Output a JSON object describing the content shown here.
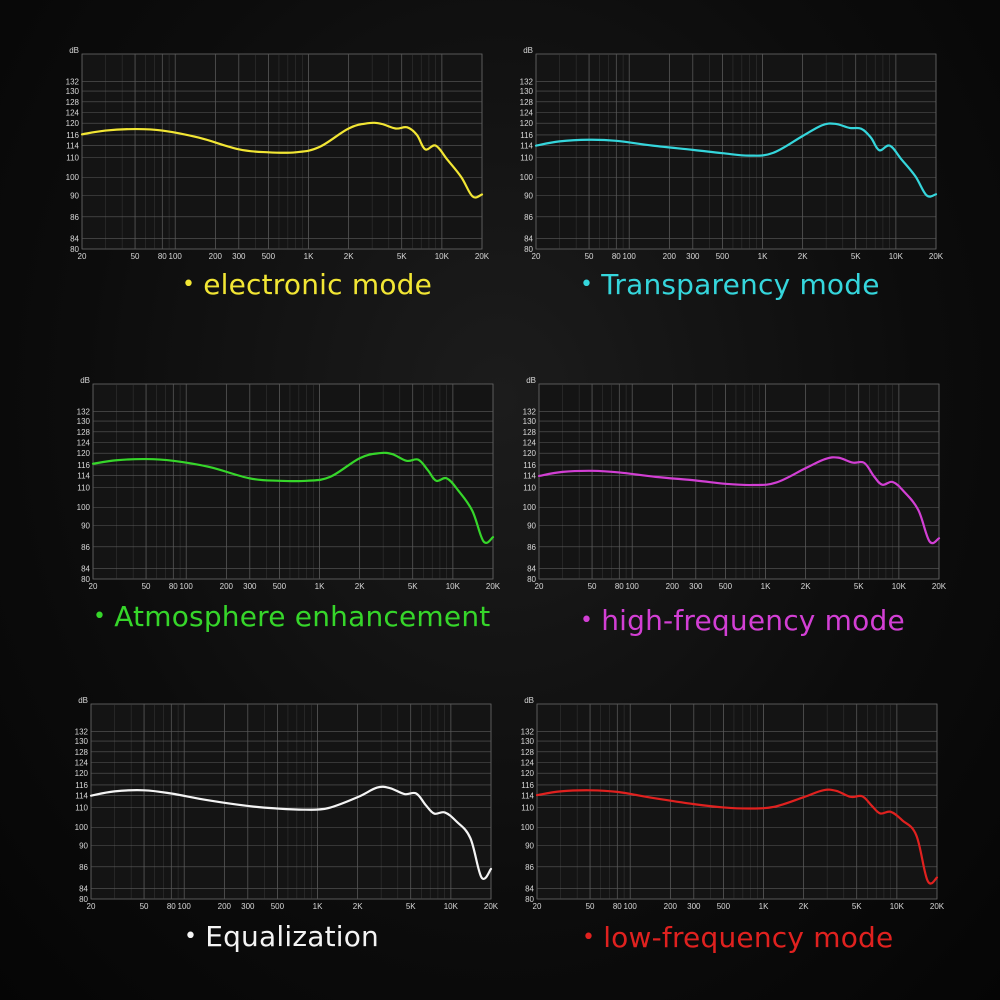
{
  "chart_data": [
    {
      "type": "line",
      "name": "electronic mode",
      "color": "#f2e634",
      "ylabel": "dB",
      "x_scale": "log",
      "xlim": [
        20,
        20000
      ],
      "x_ticks": [
        20,
        50,
        80,
        100,
        200,
        300,
        500,
        1000,
        2000,
        5000,
        10000,
        20000
      ],
      "x_tick_labels": [
        "20",
        "50",
        "80",
        "100",
        "200",
        "300",
        "500",
        "1K",
        "2K",
        "5K",
        "10K",
        "20K"
      ],
      "y_tick_labels": [
        "132",
        "130",
        "128",
        "124",
        "120",
        "116",
        "114",
        "110",
        "100",
        "90",
        "86",
        "84",
        "80"
      ],
      "grid": true,
      "series": [
        {
          "x": [
            20,
            30,
            50,
            80,
            150,
            300,
            500,
            800,
            1200,
            2000,
            2800,
            3500,
            4500,
            5500,
            6500,
            7500,
            9000,
            11000,
            14000,
            17000,
            20000
          ],
          "y": [
            116.2,
            117.5,
            118.0,
            117.5,
            115.5,
            112.8,
            111.8,
            111.8,
            113.5,
            118.2,
            120.0,
            119.8,
            118.2,
            118.6,
            116.0,
            112.8,
            114.0,
            109.0,
            100.0,
            89.8,
            90.5
          ]
        }
      ]
    },
    {
      "type": "line",
      "name": "Transparency mode",
      "color": "#35d6dc",
      "ylabel": "dB",
      "x_scale": "log",
      "xlim": [
        20,
        20000
      ],
      "x_ticks": [
        20,
        50,
        80,
        100,
        200,
        300,
        500,
        1000,
        2000,
        5000,
        10000,
        20000
      ],
      "x_tick_labels": [
        "20",
        "50",
        "80",
        "100",
        "200",
        "300",
        "500",
        "1K",
        "2K",
        "5K",
        "10K",
        "20K"
      ],
      "y_tick_labels": [
        "132",
        "130",
        "128",
        "124",
        "120",
        "116",
        "114",
        "110",
        "100",
        "90",
        "86",
        "84",
        "80"
      ],
      "grid": true,
      "series": [
        {
          "x": [
            20,
            30,
            50,
            80,
            150,
            300,
            500,
            800,
            1200,
            2000,
            2800,
            3500,
            4500,
            5500,
            6500,
            7500,
            9000,
            11000,
            14000,
            17000,
            20000
          ],
          "y": [
            114.0,
            114.8,
            115.1,
            114.9,
            114.0,
            112.6,
            111.5,
            110.7,
            111.6,
            115.8,
            119.3,
            119.8,
            118.4,
            118.1,
            115.5,
            112.5,
            114.0,
            109.2,
            100.5,
            90.0,
            90.6
          ]
        }
      ]
    },
    {
      "type": "line",
      "name": "Atmosphere enhancement",
      "color": "#36d62a",
      "ylabel": "dB",
      "x_scale": "log",
      "xlim": [
        20,
        20000
      ],
      "x_ticks": [
        20,
        50,
        80,
        100,
        200,
        300,
        500,
        1000,
        2000,
        5000,
        10000,
        20000
      ],
      "x_tick_labels": [
        "20",
        "50",
        "80",
        "100",
        "200",
        "300",
        "500",
        "1K",
        "2K",
        "5K",
        "10K",
        "20K"
      ],
      "y_tick_labels": [
        "132",
        "130",
        "128",
        "124",
        "120",
        "116",
        "114",
        "110",
        "100",
        "90",
        "86",
        "84",
        "80"
      ],
      "grid": true,
      "series": [
        {
          "x": [
            20,
            30,
            50,
            80,
            150,
            300,
            500,
            800,
            1200,
            2000,
            2800,
            3500,
            4500,
            5500,
            6500,
            7500,
            9000,
            11000,
            14000,
            17000,
            20000
          ],
          "y": [
            116.4,
            117.6,
            118.0,
            117.4,
            115.6,
            113.1,
            112.3,
            112.3,
            113.6,
            118.3,
            120.0,
            119.7,
            117.4,
            117.8,
            115.0,
            112.3,
            113.1,
            108.5,
            98.0,
            87.0,
            87.8
          ]
        }
      ]
    },
    {
      "type": "line",
      "name": "high-frequency mode",
      "color": "#d23fd4",
      "ylabel": "dB",
      "x_scale": "log",
      "xlim": [
        20,
        20000
      ],
      "x_ticks": [
        20,
        50,
        80,
        100,
        200,
        300,
        500,
        1000,
        2000,
        5000,
        10000,
        20000
      ],
      "x_tick_labels": [
        "20",
        "50",
        "80",
        "100",
        "200",
        "300",
        "500",
        "1K",
        "2K",
        "5K",
        "10K",
        "20K"
      ],
      "y_tick_labels": [
        "132",
        "130",
        "128",
        "124",
        "120",
        "116",
        "114",
        "110",
        "100",
        "90",
        "86",
        "84",
        "80"
      ],
      "grid": true,
      "series": [
        {
          "x": [
            20,
            30,
            50,
            80,
            150,
            300,
            500,
            800,
            1200,
            2000,
            2800,
            3500,
            4500,
            5500,
            6500,
            7500,
            9000,
            11000,
            14000,
            17000,
            20000
          ],
          "y": [
            113.9,
            114.7,
            114.9,
            114.6,
            113.6,
            112.4,
            111.3,
            110.9,
            111.7,
            115.4,
            118.0,
            118.5,
            116.8,
            116.7,
            113.8,
            111.0,
            111.9,
            107.8,
            98.4,
            87.0,
            87.6
          ]
        }
      ]
    },
    {
      "type": "line",
      "name": "Equalization",
      "color": "#f4f4f4",
      "ylabel": "dB",
      "x_scale": "log",
      "xlim": [
        20,
        20000
      ],
      "x_ticks": [
        20,
        50,
        80,
        100,
        200,
        300,
        500,
        1000,
        2000,
        5000,
        10000,
        20000
      ],
      "x_tick_labels": [
        "20",
        "50",
        "80",
        "100",
        "200",
        "300",
        "500",
        "1K",
        "2K",
        "5K",
        "10K",
        "20K"
      ],
      "y_tick_labels": [
        "132",
        "130",
        "128",
        "124",
        "120",
        "116",
        "114",
        "110",
        "100",
        "90",
        "86",
        "84",
        "80"
      ],
      "grid": true,
      "series": [
        {
          "x": [
            20,
            30,
            50,
            80,
            150,
            300,
            500,
            800,
            1200,
            2000,
            2800,
            3500,
            4500,
            5500,
            6500,
            7500,
            9000,
            11000,
            14000,
            17000,
            20000
          ],
          "y": [
            114.0,
            114.8,
            115.0,
            114.4,
            112.5,
            110.6,
            109.6,
            109.0,
            109.8,
            113.5,
            115.5,
            115.4,
            114.3,
            114.4,
            110.8,
            107.0,
            107.6,
            103.0,
            94.0,
            85.0,
            85.8
          ]
        }
      ]
    },
    {
      "type": "line",
      "name": "low-frequency mode",
      "color": "#e0211f",
      "ylabel": "dB",
      "x_scale": "log",
      "xlim": [
        20,
        20000
      ],
      "x_ticks": [
        20,
        50,
        80,
        100,
        200,
        300,
        500,
        1000,
        2000,
        5000,
        10000,
        20000
      ],
      "x_tick_labels": [
        "20",
        "50",
        "80",
        "100",
        "200",
        "300",
        "500",
        "1K",
        "2K",
        "5K",
        "10K",
        "20K"
      ],
      "y_tick_labels": [
        "132",
        "130",
        "128",
        "124",
        "120",
        "116",
        "114",
        "110",
        "100",
        "90",
        "86",
        "84",
        "80"
      ],
      "grid": true,
      "series": [
        {
          "x": [
            20,
            30,
            50,
            80,
            150,
            300,
            500,
            800,
            1200,
            2000,
            2800,
            3500,
            4500,
            5500,
            6500,
            7500,
            9000,
            11000,
            14000,
            17000,
            20000
          ],
          "y": [
            114.1,
            114.8,
            115.0,
            114.7,
            113.2,
            111.2,
            110.1,
            109.6,
            110.3,
            113.5,
            115.0,
            114.9,
            113.6,
            113.8,
            110.6,
            107.1,
            107.9,
            103.5,
            95.5,
            84.7,
            85.0
          ]
        }
      ]
    }
  ],
  "captions": [
    {
      "bullet": "•",
      "text": "electronic mode",
      "color": "#f2e634"
    },
    {
      "bullet": "•",
      "text": "Transparency mode",
      "color": "#35d6dc"
    },
    {
      "bullet": "•",
      "text": "Atmosphere enhancement",
      "color": "#36d62a"
    },
    {
      "bullet": "•",
      "text": "high-frequency mode",
      "color": "#d23fd4"
    },
    {
      "bullet": "•",
      "text": "Equalization",
      "color": "#f4f4f4"
    },
    {
      "bullet": "•",
      "text": "low-frequency mode",
      "color": "#e0211f"
    }
  ]
}
